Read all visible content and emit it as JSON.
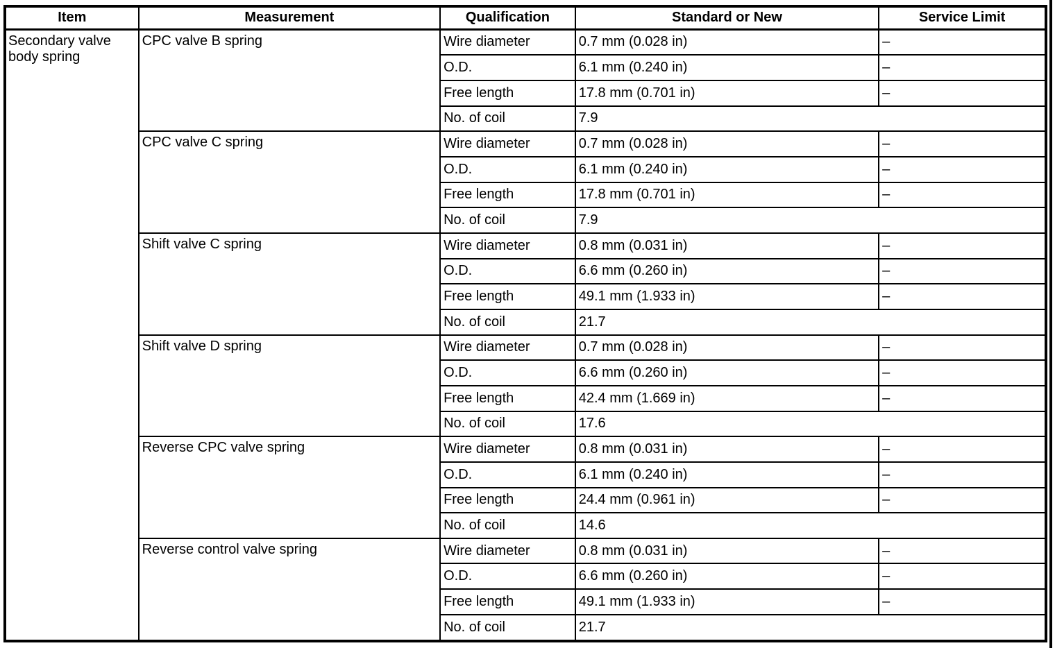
{
  "colors": {
    "border": "#000000",
    "text": "#000000",
    "background": "#ffffff"
  },
  "table": {
    "headers": [
      "Item",
      "Measurement",
      "Qualification",
      "Standard or New",
      "Service Limit"
    ],
    "item_label": "Secondary valve body spring",
    "groups": [
      {
        "measurement": "CPC valve B spring",
        "rows": [
          {
            "qualification": "Wire diameter",
            "standard": "0.7 mm (0.028 in)",
            "service_limit": "–"
          },
          {
            "qualification": "O.D.",
            "standard": "6.1 mm (0.240 in)",
            "service_limit": "–"
          },
          {
            "qualification": "Free length",
            "standard": "17.8 mm (0.701 in)",
            "service_limit": "–"
          },
          {
            "qualification": "No. of coil",
            "standard": "7.9",
            "service_limit": null
          }
        ]
      },
      {
        "measurement": "CPC valve C spring",
        "rows": [
          {
            "qualification": "Wire diameter",
            "standard": "0.7 mm (0.028 in)",
            "service_limit": "–"
          },
          {
            "qualification": "O.D.",
            "standard": "6.1 mm (0.240 in)",
            "service_limit": "–"
          },
          {
            "qualification": "Free length",
            "standard": "17.8 mm (0.701 in)",
            "service_limit": "–"
          },
          {
            "qualification": "No. of coil",
            "standard": "7.9",
            "service_limit": null
          }
        ]
      },
      {
        "measurement": "Shift valve C spring",
        "rows": [
          {
            "qualification": "Wire diameter",
            "standard": "0.8 mm (0.031 in)",
            "service_limit": "–"
          },
          {
            "qualification": "O.D.",
            "standard": "6.6 mm (0.260 in)",
            "service_limit": "–"
          },
          {
            "qualification": "Free length",
            "standard": "49.1 mm (1.933 in)",
            "service_limit": "–"
          },
          {
            "qualification": "No. of coil",
            "standard": "21.7",
            "service_limit": null
          }
        ]
      },
      {
        "measurement": "Shift valve D spring",
        "rows": [
          {
            "qualification": "Wire diameter",
            "standard": "0.7 mm (0.028 in)",
            "service_limit": "–"
          },
          {
            "qualification": "O.D.",
            "standard": "6.6 mm (0.260 in)",
            "service_limit": "–"
          },
          {
            "qualification": "Free length",
            "standard": "42.4 mm (1.669 in)",
            "service_limit": "–"
          },
          {
            "qualification": "No. of coil",
            "standard": "17.6",
            "service_limit": null
          }
        ]
      },
      {
        "measurement": "Reverse CPC valve spring",
        "rows": [
          {
            "qualification": "Wire diameter",
            "standard": "0.8 mm (0.031 in)",
            "service_limit": "–"
          },
          {
            "qualification": "O.D.",
            "standard": "6.1 mm (0.240 in)",
            "service_limit": "–"
          },
          {
            "qualification": "Free length",
            "standard": "24.4 mm (0.961 in)",
            "service_limit": "–"
          },
          {
            "qualification": "No. of coil",
            "standard": "14.6",
            "service_limit": null
          }
        ]
      },
      {
        "measurement": "Reverse control valve spring",
        "rows": [
          {
            "qualification": "Wire diameter",
            "standard": "0.8 mm (0.031 in)",
            "service_limit": "–"
          },
          {
            "qualification": "O.D.",
            "standard": "6.6 mm (0.260 in)",
            "service_limit": "–"
          },
          {
            "qualification": "Free length",
            "standard": "49.1 mm (1.933 in)",
            "service_limit": "–"
          },
          {
            "qualification": "No. of coil",
            "standard": "21.7",
            "service_limit": null
          }
        ]
      }
    ]
  }
}
